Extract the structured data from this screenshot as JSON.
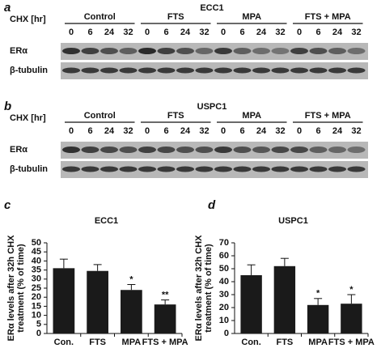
{
  "panels": [
    {
      "letter": "a",
      "title": "ECC1",
      "chx_label": "CHX [hr]",
      "groups": [
        {
          "name": "Control",
          "times": [
            "0",
            "6",
            "24",
            "32"
          ]
        },
        {
          "name": "FTS",
          "times": [
            "0",
            "6",
            "24",
            "32"
          ]
        },
        {
          "name": "MPA",
          "times": [
            "0",
            "6",
            "24",
            "32"
          ]
        },
        {
          "name": "FTS + MPA",
          "times": [
            "0",
            "6",
            "24",
            "32"
          ]
        }
      ],
      "rows": [
        "ERα",
        "β-tubulin"
      ]
    },
    {
      "letter": "b",
      "title": "USPC1",
      "chx_label": "CHX [hr]",
      "groups": [
        {
          "name": "Control",
          "times": [
            "0",
            "6",
            "24",
            "32"
          ]
        },
        {
          "name": "FTS",
          "times": [
            "0",
            "6",
            "24",
            "32"
          ]
        },
        {
          "name": "MPA",
          "times": [
            "0",
            "6",
            "24",
            "32"
          ]
        },
        {
          "name": "FTS + MPA",
          "times": [
            "0",
            "6",
            "24",
            "32"
          ]
        }
      ],
      "rows": [
        "ERα",
        "β-tubulin"
      ]
    }
  ],
  "chart_data": [
    {
      "type": "bar",
      "panel_label": "c",
      "title": "ECC1",
      "y_label": [
        "ERα levels after 32h CHX",
        "treatment (% of time)"
      ],
      "categories": [
        "Con.",
        "FTS",
        "MPA",
        "FTS + MPA"
      ],
      "values": [
        36,
        34.5,
        24,
        16
      ],
      "errors": [
        5,
        3.5,
        3,
        2.5
      ],
      "significance": [
        null,
        null,
        "*",
        "**"
      ],
      "color": "#1a1a1a",
      "ylim": [
        0,
        50
      ],
      "yticks": [
        0,
        5,
        10,
        15,
        20,
        25,
        30,
        35,
        40,
        45,
        50
      ]
    },
    {
      "type": "bar",
      "panel_label": "d",
      "title": "USPC1",
      "y_label": [
        "ERα levels after 32h CHX",
        "treatment (% of time)"
      ],
      "categories": [
        "Con.",
        "FTS",
        "MPA",
        "FTS + MPA"
      ],
      "values": [
        45,
        52,
        22,
        23
      ],
      "errors": [
        8,
        6,
        5,
        7
      ],
      "significance": [
        null,
        null,
        "*",
        "*"
      ],
      "color": "#1a1a1a",
      "ylim": [
        0,
        70
      ],
      "yticks": [
        0,
        10,
        20,
        30,
        40,
        50,
        60,
        70
      ]
    }
  ]
}
